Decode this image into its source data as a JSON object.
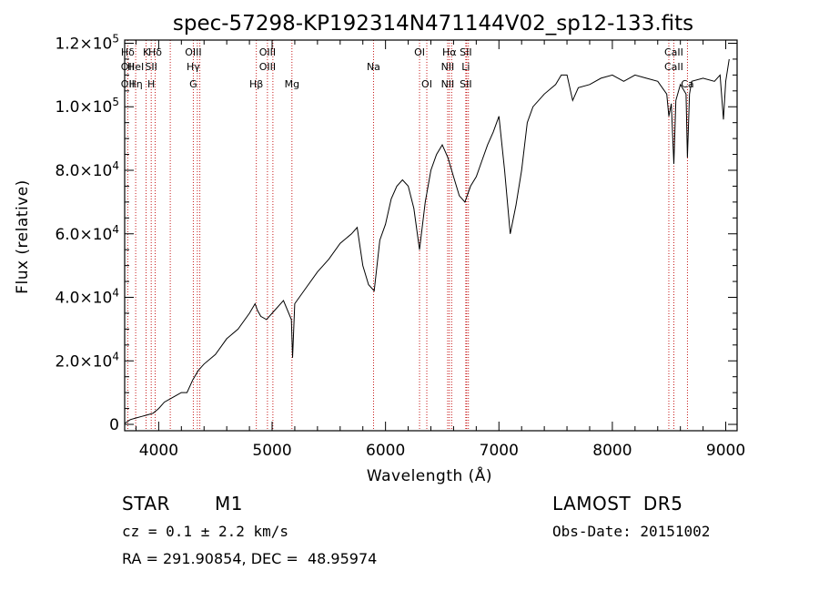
{
  "chart_data": {
    "type": "line",
    "title": "spec-57298-KP192314N471144V02_sp12-133.fits",
    "xlabel": "Wavelength (Å)",
    "ylabel": "Flux (relative)",
    "xlim": [
      3700,
      9100
    ],
    "ylim": [
      -2000,
      121000
    ],
    "x_ticks": [
      {
        "value": 4000,
        "label": "4000"
      },
      {
        "value": 5000,
        "label": "5000"
      },
      {
        "value": 6000,
        "label": "6000"
      },
      {
        "value": 7000,
        "label": "7000"
      },
      {
        "value": 8000,
        "label": "8000"
      },
      {
        "value": 9000,
        "label": "9000"
      }
    ],
    "y_ticks": [
      {
        "value": 0,
        "mant": "0",
        "exp": ""
      },
      {
        "value": 20000,
        "mant": "2.0×10",
        "exp": "4"
      },
      {
        "value": 40000,
        "mant": "4.0×10",
        "exp": "4"
      },
      {
        "value": 60000,
        "mant": "6.0×10",
        "exp": "4"
      },
      {
        "value": 80000,
        "mant": "8.0×10",
        "exp": "4"
      },
      {
        "value": 100000,
        "mant": "1.0×10",
        "exp": "5"
      },
      {
        "value": 120000,
        "mant": "1.2×10",
        "exp": "5"
      }
    ],
    "grid": false,
    "line_color": "#000000",
    "marker_color": "#c00000",
    "series": [
      {
        "x": [
          3700,
          3750,
          3800,
          3850,
          3900,
          3950,
          4000,
          4050,
          4100,
          4150,
          4200,
          4250,
          4300,
          4350,
          4400,
          4500,
          4600,
          4700,
          4800,
          4850,
          4870,
          4900,
          4950,
          5000,
          5100,
          5170,
          5180,
          5200,
          5300,
          5400,
          5500,
          5600,
          5700,
          5750,
          5800,
          5850,
          5900,
          5950,
          6000,
          6050,
          6100,
          6150,
          6200,
          6250,
          6300,
          6350,
          6400,
          6450,
          6500,
          6550,
          6600,
          6650,
          6700,
          6750,
          6800,
          6850,
          6900,
          6950,
          7000,
          7050,
          7100,
          7150,
          7200,
          7250,
          7300,
          7400,
          7500,
          7550,
          7600,
          7650,
          7700,
          7800,
          7900,
          8000,
          8100,
          8200,
          8300,
          8400,
          8480,
          8498,
          8520,
          8542,
          8560,
          8600,
          8650,
          8662,
          8680,
          8700,
          8800,
          8900,
          8950,
          8980,
          9000,
          9030
        ],
        "y": [
          300,
          1500,
          2000,
          2500,
          3000,
          3500,
          5000,
          7000,
          8000,
          9000,
          10000,
          10000,
          14000,
          17000,
          19000,
          22000,
          27000,
          30000,
          35000,
          38000,
          36000,
          34000,
          33000,
          35000,
          39000,
          33000,
          21000,
          38000,
          43000,
          48000,
          52000,
          57000,
          60000,
          62000,
          50000,
          44000,
          42000,
          58000,
          63000,
          71000,
          75000,
          77000,
          75000,
          68000,
          55000,
          70000,
          80000,
          85000,
          88000,
          84000,
          78000,
          72000,
          70000,
          75000,
          78000,
          83000,
          88000,
          92000,
          97000,
          80000,
          60000,
          69000,
          80000,
          95000,
          100000,
          104000,
          107000,
          110000,
          110000,
          102000,
          106000,
          107000,
          109000,
          110000,
          108000,
          110000,
          109000,
          108000,
          104000,
          97000,
          101000,
          82000,
          102000,
          107000,
          104000,
          84000,
          104000,
          108000,
          109000,
          108000,
          110000,
          96000,
          108000,
          115000
        ]
      }
    ],
    "lines": [
      {
        "wave": 3727,
        "top": "Hδ",
        "mid": "OII",
        "bot": "OII"
      },
      {
        "wave": 3797,
        "top": "",
        "mid": "HeI",
        "bot": "Hη"
      },
      {
        "wave": 3889,
        "top": "K",
        "mid": "",
        "bot": ""
      },
      {
        "wave": 3934,
        "top": "",
        "mid": "SII",
        "bot": "H"
      },
      {
        "wave": 3969,
        "top": "Hδ",
        "mid": "",
        "bot": ""
      },
      {
        "wave": 4102,
        "top": "",
        "mid": "",
        "bot": ""
      },
      {
        "wave": 4305,
        "top": "OIII",
        "mid": "Hγ",
        "bot": "G"
      },
      {
        "wave": 4341,
        "top": "",
        "mid": "",
        "bot": ""
      },
      {
        "wave": 4363,
        "top": "",
        "mid": "",
        "bot": ""
      },
      {
        "wave": 4861,
        "top": "",
        "mid": "",
        "bot": "Hβ"
      },
      {
        "wave": 4959,
        "top": "OIII",
        "mid": "OIII",
        "bot": ""
      },
      {
        "wave": 5007,
        "top": "",
        "mid": "",
        "bot": ""
      },
      {
        "wave": 5175,
        "top": "",
        "mid": "",
        "bot": "Mg"
      },
      {
        "wave": 5894,
        "top": "",
        "mid": "Na",
        "bot": ""
      },
      {
        "wave": 6300,
        "top": "OI",
        "mid": "",
        "bot": ""
      },
      {
        "wave": 6364,
        "top": "",
        "mid": "",
        "bot": "OI"
      },
      {
        "wave": 6548,
        "top": "",
        "mid": "NII",
        "bot": "NII"
      },
      {
        "wave": 6563,
        "top": "Hα",
        "mid": "",
        "bot": ""
      },
      {
        "wave": 6583,
        "top": "",
        "mid": "",
        "bot": ""
      },
      {
        "wave": 6708,
        "top": "SII",
        "mid": "Li",
        "bot": "SII"
      },
      {
        "wave": 6716,
        "top": "",
        "mid": "",
        "bot": ""
      },
      {
        "wave": 6731,
        "top": "",
        "mid": "",
        "bot": ""
      },
      {
        "wave": 8498,
        "top": "",
        "mid": "",
        "bot": ""
      },
      {
        "wave": 8542,
        "top": "CaII",
        "mid": "CaII",
        "bot": ""
      },
      {
        "wave": 8662,
        "top": "",
        "mid": "",
        "bot": "Ca"
      }
    ]
  },
  "info": {
    "class_label": "STAR",
    "subclass": "M1",
    "survey": "LAMOST  DR5",
    "cz": "cz = 0.1 ± 2.2 km/s",
    "obs_date": "Obs-Date: 20151002",
    "radec": "RA = 291.90854, DEC =  48.95974"
  }
}
